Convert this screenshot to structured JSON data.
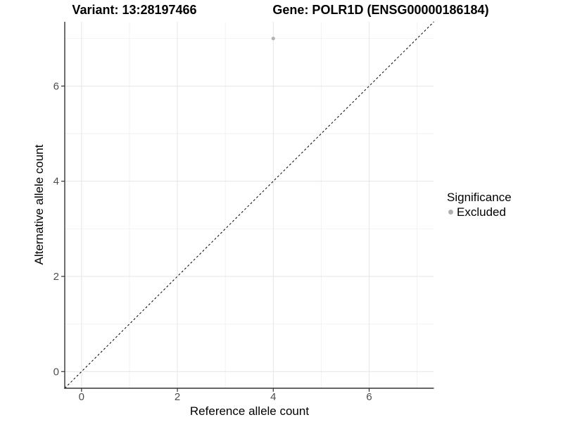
{
  "titles": {
    "variant": "Variant: 13:28197466",
    "gene": "Gene: POLR1D (ENSG00000186184)"
  },
  "axes": {
    "x": {
      "title": "Reference allele count",
      "tick_labels": [
        "0",
        "2",
        "4",
        "6"
      ]
    },
    "y": {
      "title": "Alternative allele count",
      "tick_labels": [
        "0",
        "2",
        "4",
        "6"
      ]
    }
  },
  "legend": {
    "title": "Significance",
    "items": [
      {
        "label": "Excluded",
        "color": "#b0b0b0"
      }
    ]
  },
  "colors": {
    "background": "#ffffff",
    "grid_major": "#e6e6e6",
    "grid_minor": "#f2f2f2",
    "axis_line": "#333333",
    "tick_label": "#4d4d4d",
    "point": "#b3b3b3",
    "reference_line": "#000000"
  },
  "chart_data": {
    "type": "scatter",
    "xlabel": "Reference allele count",
    "ylabel": "Alternative allele count",
    "xlim": [
      -0.35,
      7.35
    ],
    "ylim": [
      -0.35,
      7.35
    ],
    "x_major_ticks": [
      0,
      2,
      4,
      6
    ],
    "y_major_ticks": [
      0,
      2,
      4,
      6
    ],
    "x_minor_ticks": [
      1,
      3,
      5,
      7
    ],
    "y_minor_ticks": [
      1,
      3,
      5,
      7
    ],
    "grid": true,
    "legend_position": "right",
    "series": [
      {
        "name": "Excluded",
        "color": "#b3b3b3",
        "points": [
          {
            "x": 4,
            "y": 7
          }
        ]
      }
    ],
    "reference_line": {
      "type": "identity",
      "slope": 1,
      "intercept": 0,
      "style": "dashed",
      "color": "#000000"
    }
  }
}
